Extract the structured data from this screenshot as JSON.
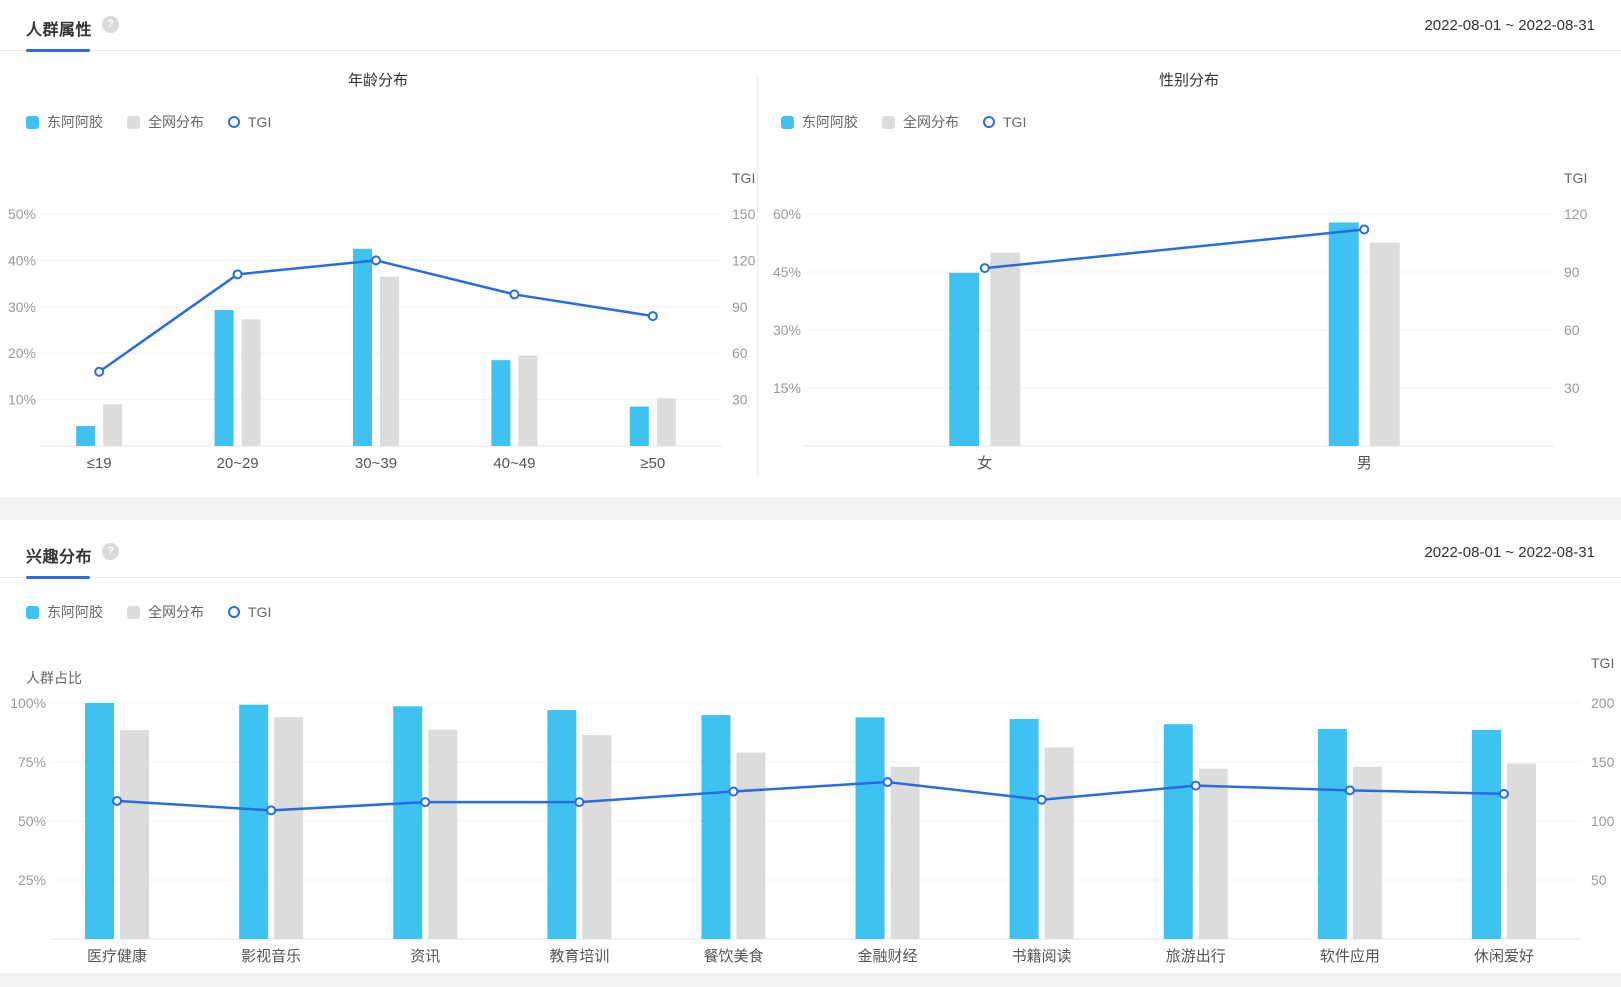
{
  "icons": {
    "help": "?"
  },
  "legend": {
    "brand": "东阿阿胶",
    "baseline": "全网分布",
    "tgi": "TGI"
  },
  "colors": {
    "brand": "#3dc2f1",
    "baseline_bar": "#dcdcdc",
    "tgi_line": "#2a6be2",
    "accent": "#2a6be2"
  },
  "sections": [
    {
      "title": "人群属性",
      "date_range": "2022-08-01 ~ 2022-08-31"
    },
    {
      "title": "兴趣分布",
      "date_range": "2022-08-01 ~ 2022-08-31"
    }
  ],
  "chart_data": [
    {
      "type": "bar",
      "title": "年龄分布",
      "categories": [
        "≤19",
        "20~29",
        "30~39",
        "40~49",
        "≥50"
      ],
      "series": [
        {
          "name": "东阿阿胶",
          "type": "bar",
          "axis": "left",
          "values": [
            4.3,
            29.3,
            42.5,
            18.5,
            8.5
          ]
        },
        {
          "name": "全网分布",
          "type": "bar",
          "axis": "left",
          "values": [
            9.0,
            27.3,
            36.5,
            19.5,
            10.3
          ]
        },
        {
          "name": "TGI",
          "type": "line",
          "axis": "right",
          "values": [
            48,
            111,
            120,
            98,
            84
          ]
        }
      ],
      "left_axis": {
        "ticks": [
          "50%",
          "40%",
          "30%",
          "20%",
          "10%"
        ],
        "max": 50,
        "unit": "%"
      },
      "right_axis": {
        "title": "TGI",
        "ticks": [
          "150",
          "120",
          "90",
          "60",
          "30"
        ],
        "max": 150
      },
      "grid": true,
      "legend_position": "top-left"
    },
    {
      "type": "bar",
      "title": "性别分布",
      "categories": [
        "女",
        "男"
      ],
      "series": [
        {
          "name": "东阿阿胶",
          "type": "bar",
          "axis": "left",
          "values": [
            44.8,
            57.8
          ]
        },
        {
          "name": "全网分布",
          "type": "bar",
          "axis": "left",
          "values": [
            50.0,
            52.6
          ]
        },
        {
          "name": "TGI",
          "type": "line",
          "axis": "right",
          "values": [
            92,
            112
          ]
        }
      ],
      "left_axis": {
        "ticks": [
          "60%",
          "45%",
          "30%",
          "15%"
        ],
        "max": 60,
        "unit": "%"
      },
      "right_axis": {
        "title": "TGI",
        "ticks": [
          "120",
          "90",
          "60",
          "30"
        ],
        "max": 120
      },
      "grid": true,
      "legend_position": "top-left"
    },
    {
      "type": "bar",
      "title": "兴趣分布",
      "categories": [
        "医疗健康",
        "影视音乐",
        "资讯",
        "教育培训",
        "餐饮美食",
        "金融财经",
        "书籍阅读",
        "旅游出行",
        "软件应用",
        "休闲爱好"
      ],
      "series": [
        {
          "name": "东阿阿胶",
          "type": "bar",
          "axis": "left",
          "values": [
            100,
            99.3,
            98.6,
            97.0,
            94.9,
            93.9,
            93.2,
            91.0,
            89.0,
            88.6
          ]
        },
        {
          "name": "全网分布",
          "type": "bar",
          "axis": "left",
          "values": [
            88.5,
            94.0,
            88.7,
            86.4,
            79.0,
            73.0,
            81.2,
            72.2,
            73.0,
            74.4
          ]
        },
        {
          "name": "TGI",
          "type": "line",
          "axis": "right",
          "values": [
            117,
            109,
            116,
            116,
            125,
            133,
            118,
            130,
            126,
            123
          ]
        }
      ],
      "left_axis": {
        "title": "人群占比",
        "ticks": [
          "100%",
          "75%",
          "50%",
          "25%"
        ],
        "max": 100,
        "unit": "%"
      },
      "right_axis": {
        "title": "TGI",
        "ticks": [
          "200",
          "150",
          "100",
          "50"
        ],
        "max": 200
      },
      "grid": true,
      "legend_position": "top-left"
    }
  ]
}
